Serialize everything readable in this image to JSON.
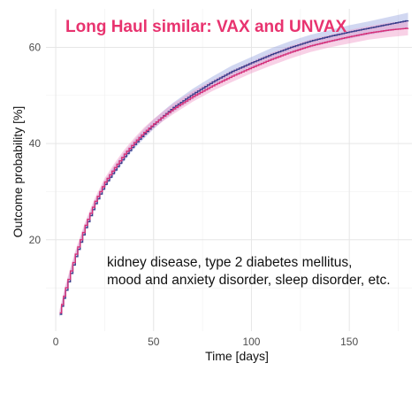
{
  "chart_data": {
    "type": "line",
    "title": "Long Haul similar: VAX and UNVAX",
    "xlabel": "Time [days]",
    "ylabel": "Outcome probability [%]",
    "xlim": [
      -5,
      182
    ],
    "ylim": [
      1,
      68
    ],
    "x_ticks": [
      0,
      50,
      100,
      150
    ],
    "y_ticks": [
      20,
      40,
      60
    ],
    "grid": true,
    "legend": "none",
    "annotation": [
      "kidney disease, type 2 diabetes mellitus,",
      "mood and anxiety disorder, sleep disorder, etc."
    ],
    "x": [
      2,
      5,
      10,
      15,
      20,
      25,
      30,
      35,
      40,
      45,
      50,
      55,
      60,
      70,
      80,
      90,
      100,
      110,
      120,
      130,
      140,
      150,
      160,
      170,
      180
    ],
    "series": [
      {
        "color": "#3b3f8c",
        "band_color": "#9aa6e0",
        "values": [
          4.5,
          9.5,
          16.5,
          22.5,
          27.5,
          31.5,
          34.5,
          37.3,
          39.8,
          42.0,
          44.0,
          45.8,
          47.5,
          50.3,
          52.8,
          55.0,
          56.8,
          58.5,
          60.0,
          61.3,
          62.3,
          63.2,
          64.0,
          64.8,
          65.6
        ],
        "lower": [
          3.8,
          8.8,
          15.8,
          21.8,
          26.8,
          30.7,
          33.6,
          36.4,
          38.9,
          41.0,
          43.0,
          44.8,
          46.5,
          49.2,
          51.7,
          53.8,
          55.6,
          57.2,
          58.7,
          60.0,
          61.0,
          61.8,
          62.6,
          63.3,
          64.0
        ],
        "upper": [
          5.2,
          10.2,
          17.2,
          23.2,
          28.2,
          32.3,
          35.4,
          38.2,
          40.7,
          43.0,
          45.0,
          46.8,
          48.5,
          51.4,
          53.9,
          56.2,
          58.0,
          59.8,
          61.3,
          62.6,
          63.6,
          64.6,
          65.4,
          66.3,
          67.2
        ]
      },
      {
        "color": "#d6317a",
        "band_color": "#f09ac8",
        "values": [
          4.8,
          10.0,
          17.0,
          23.0,
          28.0,
          32.0,
          35.0,
          37.8,
          40.2,
          42.3,
          44.1,
          45.7,
          47.2,
          49.8,
          52.0,
          54.0,
          55.8,
          57.5,
          59.0,
          60.3,
          61.3,
          62.2,
          63.0,
          63.6,
          64.0
        ],
        "lower": [
          4.1,
          9.3,
          16.3,
          22.3,
          27.3,
          31.2,
          34.1,
          36.9,
          39.3,
          41.3,
          43.1,
          44.7,
          46.1,
          48.7,
          50.9,
          52.8,
          54.6,
          56.2,
          57.7,
          59.0,
          60.0,
          60.8,
          61.6,
          62.1,
          62.5
        ],
        "upper": [
          5.5,
          10.7,
          17.7,
          23.7,
          28.7,
          32.8,
          35.9,
          38.7,
          41.1,
          43.3,
          45.1,
          46.7,
          48.3,
          50.9,
          53.1,
          55.2,
          57.0,
          58.8,
          60.3,
          61.6,
          62.6,
          63.6,
          64.4,
          65.1,
          65.5
        ]
      }
    ]
  }
}
